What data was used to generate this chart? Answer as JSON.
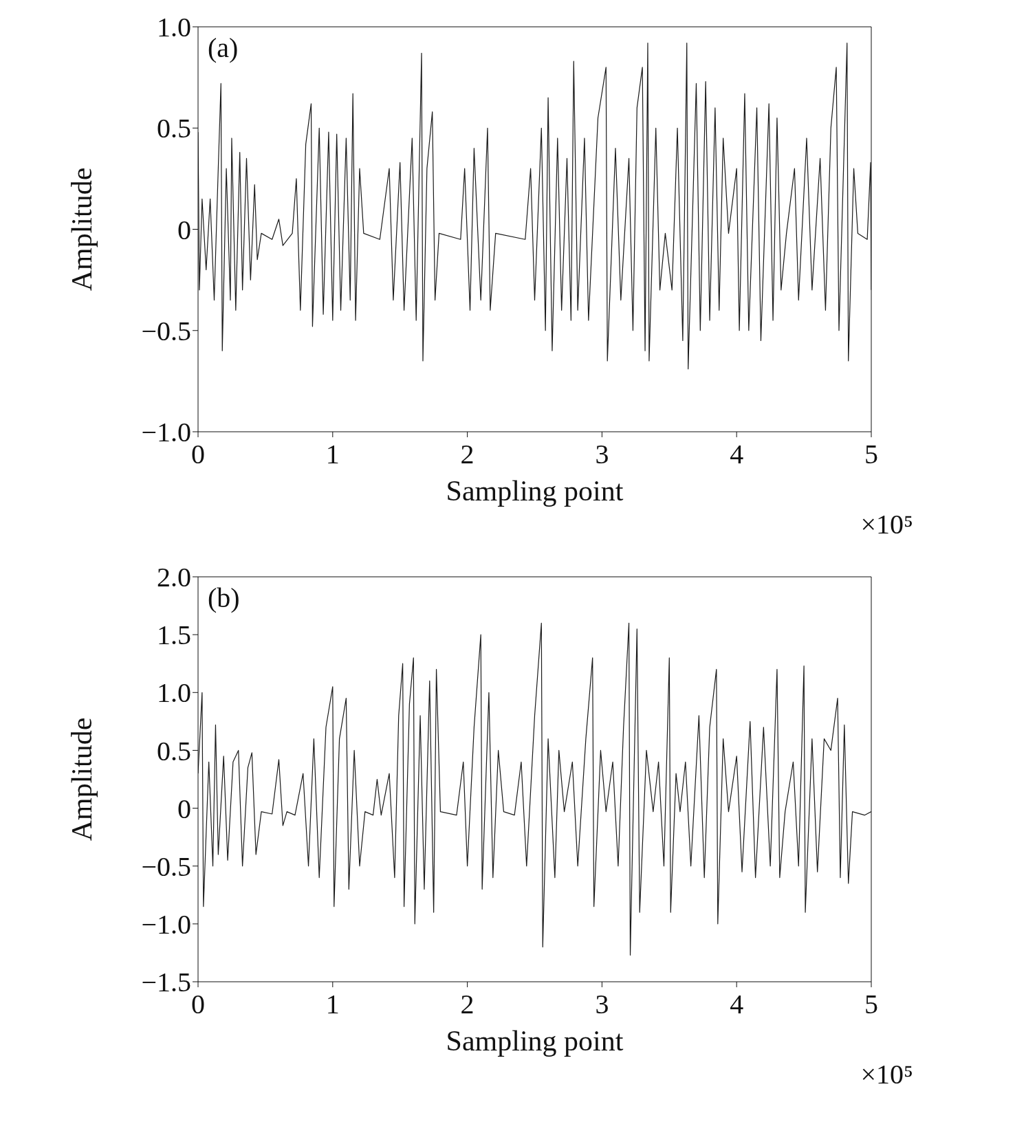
{
  "chart_data": [
    {
      "type": "line",
      "xlabel": "Sampling point",
      "ylabel": "Amplitude",
      "annotations": [
        "(a)",
        "×10⁵"
      ],
      "xlim": [
        0,
        5
      ],
      "xticks": [
        0,
        1,
        2,
        3,
        4,
        5
      ],
      "ylim": [
        -1,
        1
      ],
      "yticks": [
        {
          "value": -1,
          "label": "−1.0"
        },
        {
          "value": -0.5,
          "label": "−0.5"
        },
        {
          "value": 0,
          "label": "0"
        },
        {
          "value": 0.5,
          "label": "0.5"
        },
        {
          "value": 1,
          "label": "1.0"
        }
      ],
      "grid": false,
      "marker": "none",
      "line_style": "solid",
      "series": [
        {
          "color": "#1a1a1a",
          "x": [
            0,
            0.01,
            0.03,
            0.06,
            0.09,
            0.12,
            0.15,
            0.17,
            0.18,
            0.21,
            0.24,
            0.25,
            0.28,
            0.31,
            0.33,
            0.36,
            0.39,
            0.42,
            0.44,
            0.47,
            0.55,
            0.6,
            0.63,
            0.7,
            0.73,
            0.76,
            0.8,
            0.84,
            0.85,
            0.9,
            0.93,
            0.97,
            1.0,
            1.03,
            1.06,
            1.1,
            1.13,
            1.15,
            1.17,
            1.2,
            1.23,
            1.35,
            1.42,
            1.45,
            1.5,
            1.53,
            1.59,
            1.62,
            1.66,
            1.67,
            1.7,
            1.74,
            1.76,
            1.79,
            1.95,
            1.98,
            2.02,
            2.05,
            2.1,
            2.15,
            2.17,
            2.21,
            2.43,
            2.47,
            2.5,
            2.55,
            2.58,
            2.6,
            2.63,
            2.67,
            2.7,
            2.74,
            2.77,
            2.79,
            2.82,
            2.87,
            2.9,
            2.97,
            3.03,
            3.04,
            3.1,
            3.14,
            3.2,
            3.23,
            3.26,
            3.3,
            3.32,
            3.34,
            3.35,
            3.4,
            3.43,
            3.47,
            3.52,
            3.56,
            3.6,
            3.63,
            3.64,
            3.7,
            3.73,
            3.77,
            3.8,
            3.84,
            3.87,
            3.9,
            3.94,
            4.0,
            4.02,
            4.06,
            4.09,
            4.15,
            4.18,
            4.24,
            4.27,
            4.3,
            4.33,
            4.37,
            4.43,
            4.46,
            4.52,
            4.56,
            4.62,
            4.66,
            4.7,
            4.74,
            4.76,
            4.82,
            4.83,
            4.87,
            4.9,
            4.97,
            4.995,
            5.0
          ],
          "values": [
            0.48,
            -0.3,
            0.15,
            -0.2,
            0.15,
            -0.35,
            0.3,
            0.72,
            -0.6,
            0.3,
            -0.35,
            0.45,
            -0.4,
            0.38,
            -0.3,
            0.35,
            -0.25,
            0.22,
            -0.15,
            -0.02,
            -0.05,
            0.05,
            -0.08,
            -0.02,
            0.25,
            -0.4,
            0.42,
            0.62,
            -0.48,
            0.5,
            -0.42,
            0.48,
            -0.45,
            0.47,
            -0.4,
            0.45,
            -0.35,
            0.67,
            -0.45,
            0.3,
            -0.02,
            -0.05,
            0.3,
            -0.35,
            0.33,
            -0.4,
            0.45,
            -0.45,
            0.87,
            -0.65,
            0.3,
            0.58,
            -0.35,
            -0.02,
            -0.05,
            0.3,
            -0.4,
            0.4,
            -0.35,
            0.5,
            -0.4,
            -0.02,
            -0.05,
            0.3,
            -0.35,
            0.5,
            -0.5,
            0.65,
            -0.6,
            0.45,
            -0.4,
            0.35,
            -0.45,
            0.83,
            -0.4,
            0.45,
            -0.45,
            0.55,
            0.8,
            -0.65,
            0.4,
            -0.35,
            0.35,
            -0.5,
            0.6,
            0.8,
            -0.6,
            0.92,
            -0.65,
            0.5,
            -0.3,
            -0.02,
            -0.3,
            0.5,
            -0.55,
            0.92,
            -0.69,
            0.72,
            -0.5,
            0.73,
            -0.45,
            0.6,
            -0.4,
            0.45,
            -0.02,
            0.3,
            -0.5,
            0.67,
            -0.5,
            0.6,
            -0.55,
            0.62,
            -0.45,
            0.55,
            -0.3,
            -0.02,
            0.3,
            -0.35,
            0.45,
            -0.3,
            0.35,
            -0.4,
            0.5,
            0.8,
            -0.5,
            0.92,
            -0.65,
            0.3,
            -0.02,
            -0.05,
            0.33,
            -0.3
          ]
        }
      ]
    },
    {
      "type": "line",
      "xlabel": "Sampling point",
      "ylabel": "Amplitude",
      "annotations": [
        "(b)",
        "×10⁵"
      ],
      "xlim": [
        0,
        5
      ],
      "xticks": [
        0,
        1,
        2,
        3,
        4,
        5
      ],
      "ylim": [
        -1.5,
        2
      ],
      "yticks": [
        {
          "value": -1.5,
          "label": "−1.5"
        },
        {
          "value": -1,
          "label": "−1.0"
        },
        {
          "value": -0.5,
          "label": "−0.5"
        },
        {
          "value": 0,
          "label": "0"
        },
        {
          "value": 0.5,
          "label": "0.5"
        },
        {
          "value": 1,
          "label": "1.0"
        },
        {
          "value": 1.5,
          "label": "1.5"
        },
        {
          "value": 2,
          "label": "2.0"
        }
      ],
      "grid": false,
      "marker": "none",
      "line_style": "solid",
      "series": [
        {
          "color": "#1a1a1a",
          "x": [
            0,
            0.03,
            0.04,
            0.08,
            0.11,
            0.13,
            0.15,
            0.19,
            0.22,
            0.26,
            0.3,
            0.33,
            0.37,
            0.4,
            0.43,
            0.47,
            0.55,
            0.6,
            0.63,
            0.66,
            0.72,
            0.78,
            0.82,
            0.86,
            0.9,
            0.95,
            1.0,
            1.01,
            1.05,
            1.1,
            1.12,
            1.16,
            1.2,
            1.24,
            1.3,
            1.33,
            1.36,
            1.42,
            1.46,
            1.49,
            1.52,
            1.53,
            1.57,
            1.6,
            1.61,
            1.65,
            1.68,
            1.72,
            1.75,
            1.77,
            1.8,
            1.92,
            1.97,
            2.0,
            2.05,
            2.1,
            2.11,
            2.16,
            2.19,
            2.23,
            2.27,
            2.35,
            2.4,
            2.44,
            2.5,
            2.55,
            2.56,
            2.6,
            2.65,
            2.68,
            2.72,
            2.78,
            2.82,
            2.88,
            2.93,
            2.94,
            2.99,
            3.03,
            3.08,
            3.12,
            3.16,
            3.2,
            3.21,
            3.26,
            3.28,
            3.33,
            3.38,
            3.42,
            3.46,
            3.5,
            3.51,
            3.55,
            3.58,
            3.62,
            3.66,
            3.72,
            3.76,
            3.8,
            3.85,
            3.86,
            3.9,
            3.94,
            4.0,
            4.04,
            4.1,
            4.14,
            4.2,
            4.25,
            4.3,
            4.32,
            4.36,
            4.42,
            4.46,
            4.5,
            4.51,
            4.56,
            4.6,
            4.65,
            4.7,
            4.75,
            4.77,
            4.8,
            4.83,
            4.86,
            4.95,
            5.0
          ],
          "values": [
            0.3,
            1.0,
            -0.85,
            0.4,
            -0.5,
            0.72,
            -0.4,
            0.45,
            -0.45,
            0.4,
            0.5,
            -0.5,
            0.35,
            0.48,
            -0.4,
            -0.03,
            -0.05,
            0.42,
            -0.15,
            -0.03,
            -0.06,
            0.3,
            -0.5,
            0.6,
            -0.6,
            0.7,
            1.05,
            -0.85,
            0.6,
            0.95,
            -0.7,
            0.5,
            -0.5,
            -0.03,
            -0.06,
            0.25,
            -0.06,
            0.3,
            -0.6,
            0.8,
            1.25,
            -0.85,
            0.9,
            1.3,
            -1.0,
            0.8,
            -0.7,
            1.1,
            -0.9,
            1.2,
            -0.03,
            -0.06,
            0.4,
            -0.5,
            0.7,
            1.5,
            -0.7,
            1.0,
            -0.6,
            0.5,
            -0.03,
            -0.06,
            0.4,
            -0.5,
            0.8,
            1.6,
            -1.2,
            0.6,
            -0.6,
            0.5,
            -0.03,
            0.4,
            -0.5,
            0.6,
            1.3,
            -0.85,
            0.5,
            -0.03,
            0.4,
            -0.5,
            0.7,
            1.6,
            -1.27,
            1.55,
            -0.9,
            0.5,
            -0.03,
            0.4,
            -0.5,
            1.3,
            -0.9,
            0.3,
            -0.03,
            0.4,
            -0.5,
            0.8,
            -0.6,
            0.7,
            1.2,
            -1.0,
            0.6,
            -0.03,
            0.45,
            -0.55,
            0.75,
            -0.6,
            0.7,
            -0.5,
            1.2,
            -0.6,
            -0.03,
            0.4,
            -0.5,
            1.23,
            -0.9,
            0.6,
            -0.55,
            0.6,
            0.5,
            0.95,
            -0.6,
            0.72,
            -0.65,
            -0.03,
            -0.06,
            -0.03
          ]
        }
      ]
    }
  ]
}
